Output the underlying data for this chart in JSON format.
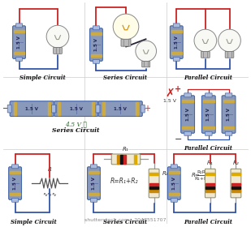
{
  "background_color": "#ffffff",
  "watermark": "shutterstock.com · 2047551707",
  "wire_red": "#cc2222",
  "wire_blue": "#3355aa",
  "wire_dark": "#222233",
  "battery_fill": "#8899bb",
  "battery_edge": "#4466aa",
  "battery_cap": "#aabbdd",
  "text_color": "#111111",
  "series_voltage": "4.5 V ✓",
  "parallel_voltage": "1.5 V",
  "batt_label": "1.5 V",
  "label_sc1": "Simple Circuit",
  "label_ser1": "Series Circuit",
  "label_par1": "Parallel Circuit",
  "label_ser2": "Series Circuit",
  "label_par2": "Parallel Circuit",
  "label_sc3": "Simple Circuit",
  "label_ser3": "Series Circuit",
  "label_par3": "Parallel Circuit"
}
